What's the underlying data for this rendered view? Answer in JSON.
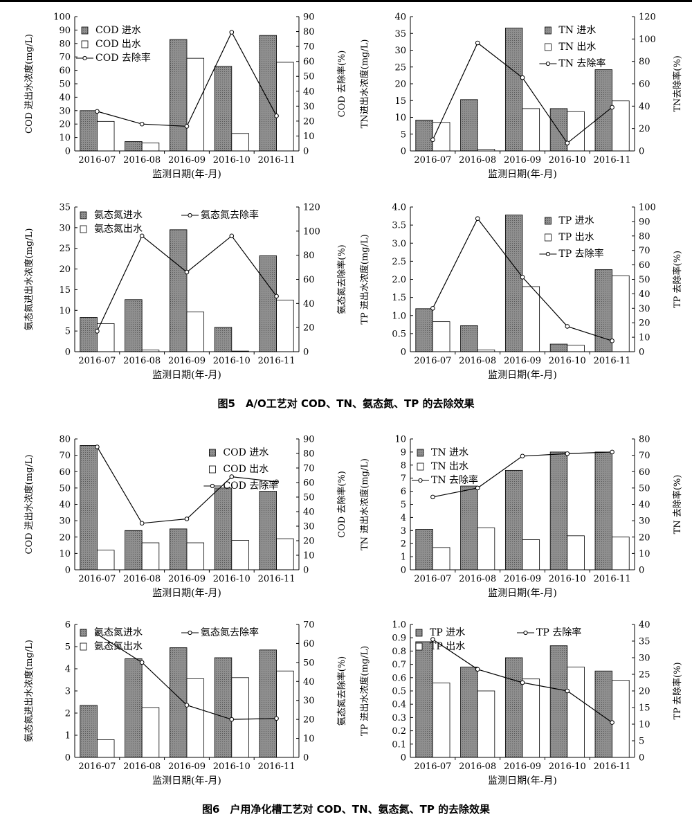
{
  "captions": {
    "fig5": "图5　A/O工艺对 COD、TN、氨态氮、TP 的去除效果",
    "fig6": "图6　户用净化槽工艺对 COD、TN、氨态氮、TP 的去除效果"
  },
  "colors": {
    "bar_in_fill": "#8f8f8f",
    "bar_out_fill": "#ffffff",
    "line": "#000000",
    "axis": "#000000"
  },
  "chart_data": [
    {
      "id": "fig5-cod",
      "figure": "图5",
      "type": "bar",
      "categories": [
        "2016-07",
        "2016-08",
        "2016-09",
        "2016-10",
        "2016-11"
      ],
      "xlabel": "监测日期(年-月)",
      "ylabel": "COD 进出水浓度(mg/L)",
      "y2label": "COD 去除率(%)",
      "ylim": [
        0,
        100
      ],
      "yticks": [
        "0",
        "10",
        "20",
        "30",
        "40",
        "50",
        "60",
        "70",
        "80",
        "90",
        "100"
      ],
      "y2lim": [
        0,
        90
      ],
      "y2ticks": [
        "0",
        "10",
        "20",
        "30",
        "40",
        "50",
        "60",
        "70",
        "80",
        "90"
      ],
      "legend": [
        "COD 进水",
        "COD 出水",
        "COD 去除率"
      ],
      "legend_layout": "stack-left",
      "series": [
        {
          "name": "COD 进水",
          "kind": "bar",
          "values": [
            30,
            7,
            83,
            63,
            86
          ]
        },
        {
          "name": "COD 出水",
          "kind": "bar",
          "values": [
            22,
            6,
            69,
            13,
            66
          ]
        },
        {
          "name": "COD 去除率",
          "kind": "line",
          "axis": "right",
          "values": [
            26.5,
            18,
            16.5,
            79.5,
            23.5
          ]
        }
      ]
    },
    {
      "id": "fig5-tn",
      "figure": "图5",
      "type": "bar",
      "categories": [
        "2016-07",
        "2016-08",
        "2016-09",
        "2016-10",
        "2016-11"
      ],
      "xlabel": "监测日期(年-月)",
      "ylabel": "TN进出水浓度(mg/L)",
      "y2label": "TN去除率(%)",
      "ylim": [
        0,
        40
      ],
      "yticks": [
        "0",
        "5",
        "10",
        "15",
        "20",
        "25",
        "30",
        "35",
        "40"
      ],
      "y2lim": [
        0,
        120
      ],
      "y2ticks": [
        "0",
        "20",
        "40",
        "60",
        "80",
        "100",
        "120"
      ],
      "legend": [
        "TN 进水",
        "TN 出水",
        "TN 去除率"
      ],
      "legend_layout": "stack-right",
      "series": [
        {
          "name": "TN 进水",
          "kind": "bar",
          "values": [
            9.2,
            15.3,
            36.6,
            12.6,
            24.2
          ]
        },
        {
          "name": "TN 出水",
          "kind": "bar",
          "values": [
            8.5,
            0.5,
            12.6,
            11.7,
            14.9
          ]
        },
        {
          "name": "TN 去除率",
          "kind": "line",
          "axis": "right",
          "values": [
            10,
            96.5,
            65.5,
            7,
            39
          ]
        }
      ]
    },
    {
      "id": "fig5-nh",
      "figure": "图5",
      "type": "bar",
      "categories": [
        "2016-07",
        "2016-08",
        "2016-09",
        "2016-10",
        "2016-11"
      ],
      "xlabel": "监测日期(年-月)",
      "ylabel": "氨态氮进出水浓度(mg/L)",
      "y2label": "氨态氮去除率(%)",
      "ylim": [
        0,
        35
      ],
      "yticks": [
        "0",
        "5",
        "10",
        "15",
        "20",
        "25",
        "30",
        "35"
      ],
      "y2lim": [
        0,
        120
      ],
      "y2ticks": [
        "0",
        "20",
        "40",
        "60",
        "80",
        "100",
        "120"
      ],
      "legend": [
        "氨态氮进水",
        "氨态氮出水",
        "氨态氮去除率"
      ],
      "legend_layout": "two-col",
      "series": [
        {
          "name": "氨态氮进水",
          "kind": "bar",
          "values": [
            8.3,
            12.6,
            29.5,
            5.9,
            23.2
          ]
        },
        {
          "name": "氨态氮出水",
          "kind": "bar",
          "values": [
            6.8,
            0.4,
            9.6,
            0.15,
            12.5
          ]
        },
        {
          "name": "氨态氮去除率",
          "kind": "line",
          "axis": "right",
          "values": [
            17,
            96,
            66,
            96,
            46
          ]
        }
      ]
    },
    {
      "id": "fig5-tp",
      "figure": "图5",
      "type": "bar",
      "categories": [
        "2016-07",
        "2016-08",
        "2016-09",
        "2016-10",
        "2016-11"
      ],
      "xlabel": "监测日期(年-月)",
      "ylabel": "TP 进出水浓度(mg/L)",
      "y2label": "TP 去除率(%)",
      "ylim": [
        0,
        4.0
      ],
      "yticks": [
        "0",
        "0.5",
        "1.0",
        "1.5",
        "2.0",
        "2.5",
        "3.0",
        "3.5",
        "4.0"
      ],
      "y2lim": [
        0,
        100
      ],
      "y2ticks": [
        "0",
        "10",
        "20",
        "30",
        "40",
        "50",
        "60",
        "70",
        "80",
        "90",
        "100"
      ],
      "legend": [
        "TP 进水",
        "TP 出水",
        "TP 去除率"
      ],
      "legend_layout": "stack-right",
      "series": [
        {
          "name": "TP 进水",
          "kind": "bar",
          "values": [
            1.19,
            0.72,
            3.78,
            0.21,
            2.27
          ]
        },
        {
          "name": "TP 出水",
          "kind": "bar",
          "values": [
            0.83,
            0.05,
            1.8,
            0.18,
            2.1
          ]
        },
        {
          "name": "TP 去除率",
          "kind": "line",
          "axis": "right",
          "values": [
            30,
            92,
            51.5,
            17.5,
            7.5
          ]
        }
      ]
    },
    {
      "id": "fig6-cod",
      "figure": "图6",
      "type": "bar",
      "categories": [
        "2016-07",
        "2016-08",
        "2016-09",
        "2016-10",
        "2016-11"
      ],
      "xlabel": "监测日期(年-月)",
      "ylabel": "COD 进出水浓度(mg/L)",
      "y2label": "COD 去除率(%)",
      "ylim": [
        0,
        80
      ],
      "yticks": [
        "0",
        "10",
        "20",
        "30",
        "40",
        "50",
        "60",
        "70",
        "80"
      ],
      "y2lim": [
        0,
        90
      ],
      "y2ticks": [
        "0",
        "10",
        "20",
        "30",
        "40",
        "50",
        "60",
        "70",
        "80",
        "90"
      ],
      "legend": [
        "COD 进水",
        "COD 出水",
        "COD 去除率"
      ],
      "legend_layout": "stack-right",
      "series": [
        {
          "name": "COD 进水",
          "kind": "bar",
          "values": [
            76,
            24,
            25,
            50,
            48
          ]
        },
        {
          "name": "COD 出水",
          "kind": "bar",
          "values": [
            12,
            16.5,
            16.5,
            18,
            19
          ]
        },
        {
          "name": "COD 去除率",
          "kind": "line",
          "axis": "right",
          "values": [
            84.5,
            32,
            35,
            64,
            60.5
          ]
        }
      ]
    },
    {
      "id": "fig6-tn",
      "figure": "图6",
      "type": "bar",
      "categories": [
        "2016-07",
        "2016-08",
        "2016-09",
        "2016-10",
        "2016-11"
      ],
      "xlabel": "监测日期(年-月)",
      "ylabel": "TN 进出水浓度(mg/L)",
      "y2label": "TN 去除率(%)",
      "ylim": [
        0,
        10
      ],
      "yticks": [
        "0",
        "1",
        "2",
        "3",
        "4",
        "5",
        "6",
        "7",
        "8",
        "9",
        "10"
      ],
      "y2lim": [
        0,
        80
      ],
      "y2ticks": [
        "0",
        "10",
        "20",
        "30",
        "40",
        "50",
        "60",
        "70",
        "80"
      ],
      "legend": [
        "TN 进水",
        "TN 出水",
        "TN 去除率"
      ],
      "legend_layout": "stack-left",
      "series": [
        {
          "name": "TN 进水",
          "kind": "bar",
          "values": [
            3.1,
            6.4,
            7.6,
            9.0,
            9.0
          ]
        },
        {
          "name": "TN 出水",
          "kind": "bar",
          "values": [
            1.7,
            3.2,
            2.3,
            2.6,
            2.5
          ]
        },
        {
          "name": "TN 去除率",
          "kind": "line",
          "axis": "right",
          "values": [
            44.5,
            50,
            69.5,
            71,
            72
          ]
        }
      ]
    },
    {
      "id": "fig6-nh",
      "figure": "图6",
      "type": "bar",
      "categories": [
        "2016-07",
        "2016-08",
        "2016-09",
        "2016-10",
        "2016-11"
      ],
      "xlabel": "监测日期(年-月)",
      "ylabel": "氨态氮进出水浓度(mg/L)",
      "y2label": "氨态氮去除率(%)",
      "ylim": [
        0,
        6
      ],
      "yticks": [
        "0",
        "1",
        "2",
        "3",
        "4",
        "5",
        "6"
      ],
      "y2lim": [
        0,
        70
      ],
      "y2ticks": [
        "0",
        "10",
        "20",
        "30",
        "40",
        "50",
        "60",
        "70"
      ],
      "legend": [
        "氨态氮进水",
        "氨态氮出水",
        "氨态氮去除率"
      ],
      "legend_layout": "two-col",
      "series": [
        {
          "name": "氨态氮进水",
          "kind": "bar",
          "values": [
            2.35,
            4.45,
            4.95,
            4.5,
            4.85
          ]
        },
        {
          "name": "氨态氮出水",
          "kind": "bar",
          "values": [
            0.8,
            2.25,
            3.55,
            3.6,
            3.9
          ]
        },
        {
          "name": "氨态氮去除率",
          "kind": "line",
          "axis": "right",
          "values": [
            65,
            50,
            27.5,
            20,
            20.5
          ]
        }
      ]
    },
    {
      "id": "fig6-tp",
      "figure": "图6",
      "type": "bar",
      "categories": [
        "2016-07",
        "2016-08",
        "2016-09",
        "2016-10",
        "2016-11"
      ],
      "xlabel": "监测日期(年-月)",
      "ylabel": "TP 进出水浓度(mg/L)",
      "y2label": "TP 去除率(%)",
      "ylim": [
        0,
        1.0
      ],
      "yticks": [
        "0",
        "0.1",
        "0.2",
        "0.3",
        "0.4",
        "0.5",
        "0.6",
        "0.7",
        "0.8",
        "0.9",
        "1.0"
      ],
      "y2lim": [
        0,
        40
      ],
      "y2ticks": [
        "0",
        "5",
        "10",
        "15",
        "20",
        "25",
        "30",
        "35",
        "40"
      ],
      "legend": [
        "TP 进水",
        "TP 出水",
        "TP 去除率"
      ],
      "legend_layout": "two-col",
      "series": [
        {
          "name": "TP 进水",
          "kind": "bar",
          "values": [
            0.87,
            0.68,
            0.75,
            0.84,
            0.65
          ]
        },
        {
          "name": "TP 出水",
          "kind": "bar",
          "values": [
            0.56,
            0.5,
            0.59,
            0.68,
            0.58
          ]
        },
        {
          "name": "TP 去除率",
          "kind": "line",
          "axis": "right",
          "values": [
            35.5,
            26.5,
            22.5,
            20,
            10.5
          ]
        }
      ]
    }
  ]
}
